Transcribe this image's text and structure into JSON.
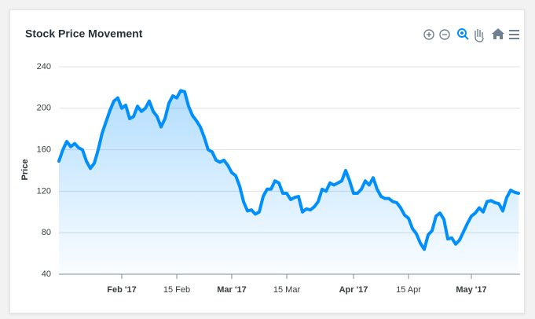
{
  "chart_data": {
    "type": "area",
    "title": "Stock Price Movement",
    "y_label": "Price",
    "x": [
      "2017-01-16",
      "2017-01-17",
      "2017-01-18",
      "2017-01-19",
      "2017-01-20",
      "2017-01-21",
      "2017-01-22",
      "2017-01-23",
      "2017-01-24",
      "2017-01-25",
      "2017-01-26",
      "2017-01-27",
      "2017-01-28",
      "2017-01-29",
      "2017-01-30",
      "2017-01-31",
      "2017-02-01",
      "2017-02-02",
      "2017-02-03",
      "2017-02-04",
      "2017-02-05",
      "2017-02-06",
      "2017-02-07",
      "2017-02-08",
      "2017-02-09",
      "2017-02-10",
      "2017-02-11",
      "2017-02-12",
      "2017-02-13",
      "2017-02-14",
      "2017-02-15",
      "2017-02-16",
      "2017-02-17",
      "2017-02-18",
      "2017-02-19",
      "2017-02-20",
      "2017-02-21",
      "2017-02-22",
      "2017-02-23",
      "2017-02-24",
      "2017-02-25",
      "2017-02-26",
      "2017-02-27",
      "2017-02-28",
      "2017-03-01",
      "2017-03-02",
      "2017-03-03",
      "2017-03-04",
      "2017-03-05",
      "2017-03-06",
      "2017-03-07",
      "2017-03-08",
      "2017-03-09",
      "2017-03-10",
      "2017-03-11",
      "2017-03-12",
      "2017-03-13",
      "2017-03-14",
      "2017-03-15",
      "2017-03-16",
      "2017-03-17",
      "2017-03-18",
      "2017-03-19",
      "2017-03-20",
      "2017-03-21",
      "2017-03-22",
      "2017-03-23",
      "2017-03-24",
      "2017-03-25",
      "2017-03-26",
      "2017-03-27",
      "2017-03-28",
      "2017-03-29",
      "2017-03-30",
      "2017-03-31",
      "2017-04-01",
      "2017-04-02",
      "2017-04-03",
      "2017-04-04",
      "2017-04-05",
      "2017-04-06",
      "2017-04-07",
      "2017-04-08",
      "2017-04-09",
      "2017-04-10",
      "2017-04-11",
      "2017-04-12",
      "2017-04-13",
      "2017-04-14",
      "2017-04-15",
      "2017-04-16",
      "2017-04-17",
      "2017-04-18",
      "2017-04-19",
      "2017-04-20",
      "2017-04-21",
      "2017-04-22",
      "2017-04-23",
      "2017-04-24",
      "2017-04-25",
      "2017-04-26",
      "2017-04-27",
      "2017-04-28",
      "2017-04-29",
      "2017-04-30",
      "2017-05-01",
      "2017-05-02",
      "2017-05-03",
      "2017-05-04",
      "2017-05-05",
      "2017-05-06",
      "2017-05-07",
      "2017-05-08",
      "2017-05-09",
      "2017-05-10",
      "2017-05-11",
      "2017-05-12",
      "2017-05-13"
    ],
    "series": [
      {
        "name": "Price",
        "color": "#008ffb",
        "values": [
          149,
          160,
          168,
          163,
          166,
          162,
          160,
          149,
          142,
          147,
          160,
          176,
          187,
          198,
          207,
          210,
          200,
          203,
          190,
          192,
          202,
          197,
          200,
          207,
          197,
          192,
          182,
          190,
          205,
          212,
          210,
          217,
          216,
          202,
          193,
          188,
          182,
          172,
          160,
          158,
          150,
          148,
          150,
          145,
          138,
          135,
          125,
          110,
          101,
          102,
          98,
          100,
          115,
          122,
          122,
          130,
          128,
          118,
          118,
          112,
          114,
          115,
          100,
          103,
          102,
          105,
          110,
          122,
          120,
          128,
          126,
          128,
          130,
          140,
          130,
          118,
          118,
          122,
          130,
          126,
          133,
          122,
          115,
          113,
          113,
          110,
          109,
          104,
          97,
          94,
          84,
          79,
          70,
          64,
          78,
          82,
          96,
          99,
          93,
          74,
          75,
          69,
          73,
          81,
          89,
          96,
          99,
          104,
          100,
          110,
          111,
          109,
          108,
          101,
          114,
          121,
          119,
          118
        ]
      }
    ],
    "xlim": [
      "2017-01-16",
      "2017-05-13"
    ],
    "xticks": [
      {
        "value": "2017-02-01",
        "label": "Feb '17"
      },
      {
        "value": "2017-02-15",
        "label": "15 Feb"
      },
      {
        "value": "2017-03-01",
        "label": "Mar '17"
      },
      {
        "value": "2017-03-15",
        "label": "15 Mar"
      },
      {
        "value": "2017-04-01",
        "label": "Apr '17"
      },
      {
        "value": "2017-04-15",
        "label": "15 Apr"
      },
      {
        "value": "2017-05-01",
        "label": "May '17"
      }
    ],
    "ylim": [
      40,
      240
    ],
    "yticks": [
      40,
      80,
      120,
      160,
      200,
      240
    ],
    "grid": true
  }
}
